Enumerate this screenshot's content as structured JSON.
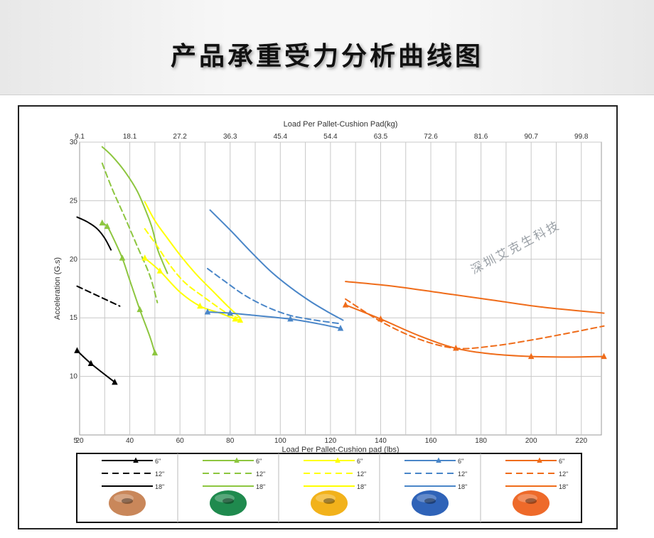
{
  "header": {
    "title": "产品承重受力分析曲线图"
  },
  "watermark": "深圳艾克生科技",
  "colors": {
    "black": "#000000",
    "green": "#8dc63f",
    "yellow": "#ffff00",
    "blue": "#4a86c8",
    "orange": "#ef6c1a"
  },
  "chart_data": {
    "type": "line",
    "title": "",
    "top_xlabel": "Load Per Pallet-Cushion Pad(kg)",
    "xlabel": "Load Per Pallet-Cushion pad (lbs)",
    "ylabel": "Acceleration (G.s)",
    "xlim": [
      20,
      228
    ],
    "ylim": [
      5,
      30
    ],
    "x_ticks": [
      20,
      40,
      60,
      80,
      100,
      120,
      140,
      160,
      180,
      200,
      220
    ],
    "y_ticks": [
      10,
      15,
      20,
      25,
      30
    ],
    "y_origin_label": "5",
    "top_ticks": [
      {
        "x": 20,
        "label": "9.1"
      },
      {
        "x": 40,
        "label": "18.1"
      },
      {
        "x": 60,
        "label": "27.2"
      },
      {
        "x": 80,
        "label": "36.3"
      },
      {
        "x": 100,
        "label": "45.4"
      },
      {
        "x": 120,
        "label": "54.4"
      },
      {
        "x": 140,
        "label": "63.5"
      },
      {
        "x": 160,
        "label": "72.6"
      },
      {
        "x": 180,
        "label": "81.6"
      },
      {
        "x": 200,
        "label": "90.7"
      },
      {
        "x": 220,
        "label": "99.8"
      }
    ],
    "grid": true,
    "series": [
      {
        "color": "black",
        "thickness": "6\"",
        "style": "solid",
        "marker": true,
        "points": [
          [
            19,
            12.2
          ],
          [
            24.5,
            11.1
          ],
          [
            34,
            9.5
          ]
        ]
      },
      {
        "color": "black",
        "thickness": "12\"",
        "style": "dashed",
        "marker": false,
        "points": [
          [
            19,
            17.7
          ],
          [
            36,
            16.0
          ]
        ]
      },
      {
        "color": "black",
        "thickness": "18\"",
        "style": "solid",
        "marker": false,
        "points": [
          [
            19,
            23.6
          ],
          [
            23,
            23.2
          ],
          [
            27,
            22.6
          ],
          [
            30,
            21.8
          ],
          [
            32.5,
            20.8
          ]
        ]
      },
      {
        "color": "green",
        "thickness": "6\"",
        "style": "solid",
        "marker": true,
        "points": [
          [
            29,
            23.1
          ],
          [
            31,
            22.8
          ],
          [
            33,
            22.0
          ],
          [
            37,
            20.1
          ],
          [
            40,
            18.2
          ],
          [
            44,
            15.7
          ],
          [
            48,
            13.4
          ],
          [
            50,
            12.0
          ]
        ]
      },
      {
        "color": "green",
        "thickness": "12\"",
        "style": "dashed",
        "marker": false,
        "points": [
          [
            29,
            28.2
          ],
          [
            33,
            26.0
          ],
          [
            38,
            23.6
          ],
          [
            43,
            21.1
          ],
          [
            48,
            18.6
          ],
          [
            51,
            16.3
          ]
        ]
      },
      {
        "color": "green",
        "thickness": "18\"",
        "style": "solid",
        "marker": false,
        "points": [
          [
            29,
            29.6
          ],
          [
            33,
            28.8
          ],
          [
            38,
            27.5
          ],
          [
            43,
            25.8
          ],
          [
            47,
            23.8
          ],
          [
            49,
            22.6
          ],
          [
            51,
            20.9
          ],
          [
            53,
            19.8
          ],
          [
            55,
            18.8
          ]
        ]
      },
      {
        "color": "yellow",
        "thickness": "6\"",
        "style": "solid",
        "marker": true,
        "points": [
          [
            46,
            20.1
          ],
          [
            52,
            19.0
          ],
          [
            60,
            17.2
          ],
          [
            68,
            16.0
          ],
          [
            76,
            15.4
          ],
          [
            82,
            14.9
          ],
          [
            84,
            14.8
          ]
        ]
      },
      {
        "color": "yellow",
        "thickness": "12\"",
        "style": "dashed",
        "marker": false,
        "points": [
          [
            46,
            22.6
          ],
          [
            51,
            21.1
          ],
          [
            56,
            19.5
          ],
          [
            62,
            18.0
          ],
          [
            70,
            16.7
          ],
          [
            78,
            15.5
          ],
          [
            83,
            15.0
          ]
        ]
      },
      {
        "color": "yellow",
        "thickness": "18\"",
        "style": "solid",
        "marker": false,
        "points": [
          [
            46,
            24.9
          ],
          [
            50,
            23.3
          ],
          [
            55,
            21.8
          ],
          [
            61,
            20.1
          ],
          [
            67,
            18.6
          ],
          [
            73,
            17.3
          ],
          [
            79,
            16.0
          ],
          [
            84,
            15.0
          ]
        ]
      },
      {
        "color": "blue",
        "thickness": "6\"",
        "style": "solid",
        "marker": true,
        "points": [
          [
            71,
            15.5
          ],
          [
            80,
            15.4
          ],
          [
            90,
            15.2
          ],
          [
            104,
            14.9
          ],
          [
            115,
            14.5
          ],
          [
            124,
            14.1
          ]
        ]
      },
      {
        "color": "blue",
        "thickness": "12\"",
        "style": "dashed",
        "marker": false,
        "points": [
          [
            71,
            19.2
          ],
          [
            78,
            18.1
          ],
          [
            86,
            16.9
          ],
          [
            95,
            15.9
          ],
          [
            104,
            15.2
          ],
          [
            114,
            14.8
          ],
          [
            124,
            14.5
          ]
        ]
      },
      {
        "color": "blue",
        "thickness": "18\"",
        "style": "solid",
        "marker": false,
        "points": [
          [
            72,
            24.2
          ],
          [
            80,
            22.5
          ],
          [
            88,
            20.7
          ],
          [
            96,
            19.0
          ],
          [
            104,
            17.6
          ],
          [
            112,
            16.4
          ],
          [
            119,
            15.5
          ],
          [
            125,
            14.8
          ]
        ]
      },
      {
        "color": "orange",
        "thickness": "6\"",
        "style": "solid",
        "marker": true,
        "points": [
          [
            126,
            16.1
          ],
          [
            140,
            14.9
          ],
          [
            155,
            13.5
          ],
          [
            170,
            12.4
          ],
          [
            185,
            11.9
          ],
          [
            200,
            11.7
          ],
          [
            215,
            11.65
          ],
          [
            229,
            11.7
          ]
        ]
      },
      {
        "color": "orange",
        "thickness": "12\"",
        "style": "dashed",
        "marker": false,
        "points": [
          [
            126,
            16.6
          ],
          [
            140,
            14.7
          ],
          [
            155,
            13.2
          ],
          [
            170,
            12.4
          ],
          [
            185,
            12.6
          ],
          [
            200,
            13.1
          ],
          [
            215,
            13.7
          ],
          [
            229,
            14.3
          ]
        ]
      },
      {
        "color": "orange",
        "thickness": "18\"",
        "style": "solid",
        "marker": false,
        "points": [
          [
            126,
            18.1
          ],
          [
            145,
            17.7
          ],
          [
            165,
            17.1
          ],
          [
            185,
            16.5
          ],
          [
            205,
            15.9
          ],
          [
            229,
            15.4
          ]
        ]
      }
    ],
    "legend": {
      "placement": "bottom",
      "groups": [
        {
          "color": "black",
          "entries": [
            "6\"",
            "12\"",
            "18\""
          ],
          "pad_color": "#c9875a"
        },
        {
          "color": "green",
          "entries": [
            "6\"",
            "12\"",
            "18\""
          ],
          "pad_color": "#1f8a4e"
        },
        {
          "color": "yellow",
          "entries": [
            "6\"",
            "12\"",
            "18\""
          ],
          "pad_color": "#f2b21b"
        },
        {
          "color": "blue",
          "entries": [
            "6\"",
            "12\"",
            "18\""
          ],
          "pad_color": "#2f63b8"
        },
        {
          "color": "orange",
          "entries": [
            "6\"",
            "12\"",
            "18\""
          ],
          "pad_color": "#ee6a2a"
        }
      ]
    }
  }
}
